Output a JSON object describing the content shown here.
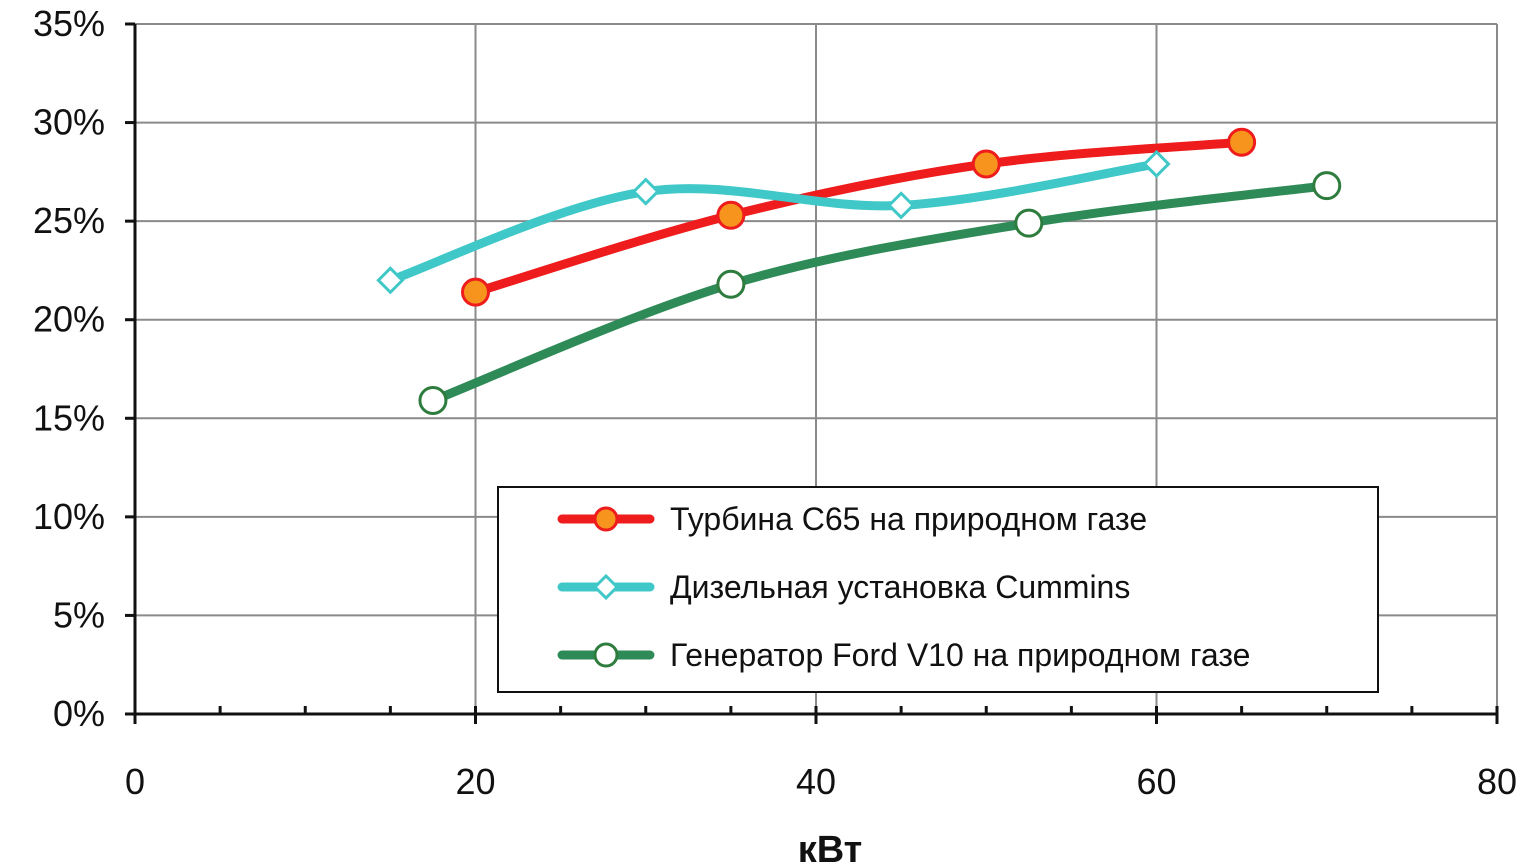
{
  "chart_data": {
    "type": "line",
    "title": "",
    "xlabel": "кВт",
    "ylabel": "",
    "xlim": [
      0,
      80
    ],
    "ylim": [
      0,
      35
    ],
    "x_ticks": [
      0,
      20,
      40,
      60,
      80
    ],
    "x_tick_labels": [
      "0",
      "20",
      "40",
      "60",
      "80"
    ],
    "y_ticks": [
      0,
      5,
      10,
      15,
      20,
      25,
      30,
      35
    ],
    "y_tick_labels": [
      "0%",
      "5%",
      "10%",
      "15%",
      "20%",
      "25%",
      "30%",
      "35%"
    ],
    "grid": true,
    "legend_position": "bottom-right",
    "series": [
      {
        "name": "Турбина C65 на природном газе",
        "line_color": "#ee1c1c",
        "marker": "circle",
        "marker_fill": "#f7941d",
        "marker_stroke": "#ee1c1c",
        "x": [
          20,
          35,
          50,
          65
        ],
        "y": [
          21.4,
          25.3,
          27.9,
          29.0
        ]
      },
      {
        "name": "Дизельная установка Cummins",
        "line_color": "#40c8c8",
        "marker": "diamond",
        "marker_fill": "#ffffff",
        "marker_stroke": "#40c8c8",
        "x": [
          15,
          30,
          45,
          60
        ],
        "y": [
          22.0,
          26.5,
          25.8,
          27.9
        ]
      },
      {
        "name": "Генератор Ford V10 на природном газе",
        "line_color": "#2e8b57",
        "marker": "circle",
        "marker_fill": "#ffffff",
        "marker_stroke": "#2e7d3e",
        "x": [
          17.5,
          35,
          52.5,
          70
        ],
        "y": [
          15.9,
          21.8,
          24.9,
          26.8
        ]
      }
    ]
  }
}
